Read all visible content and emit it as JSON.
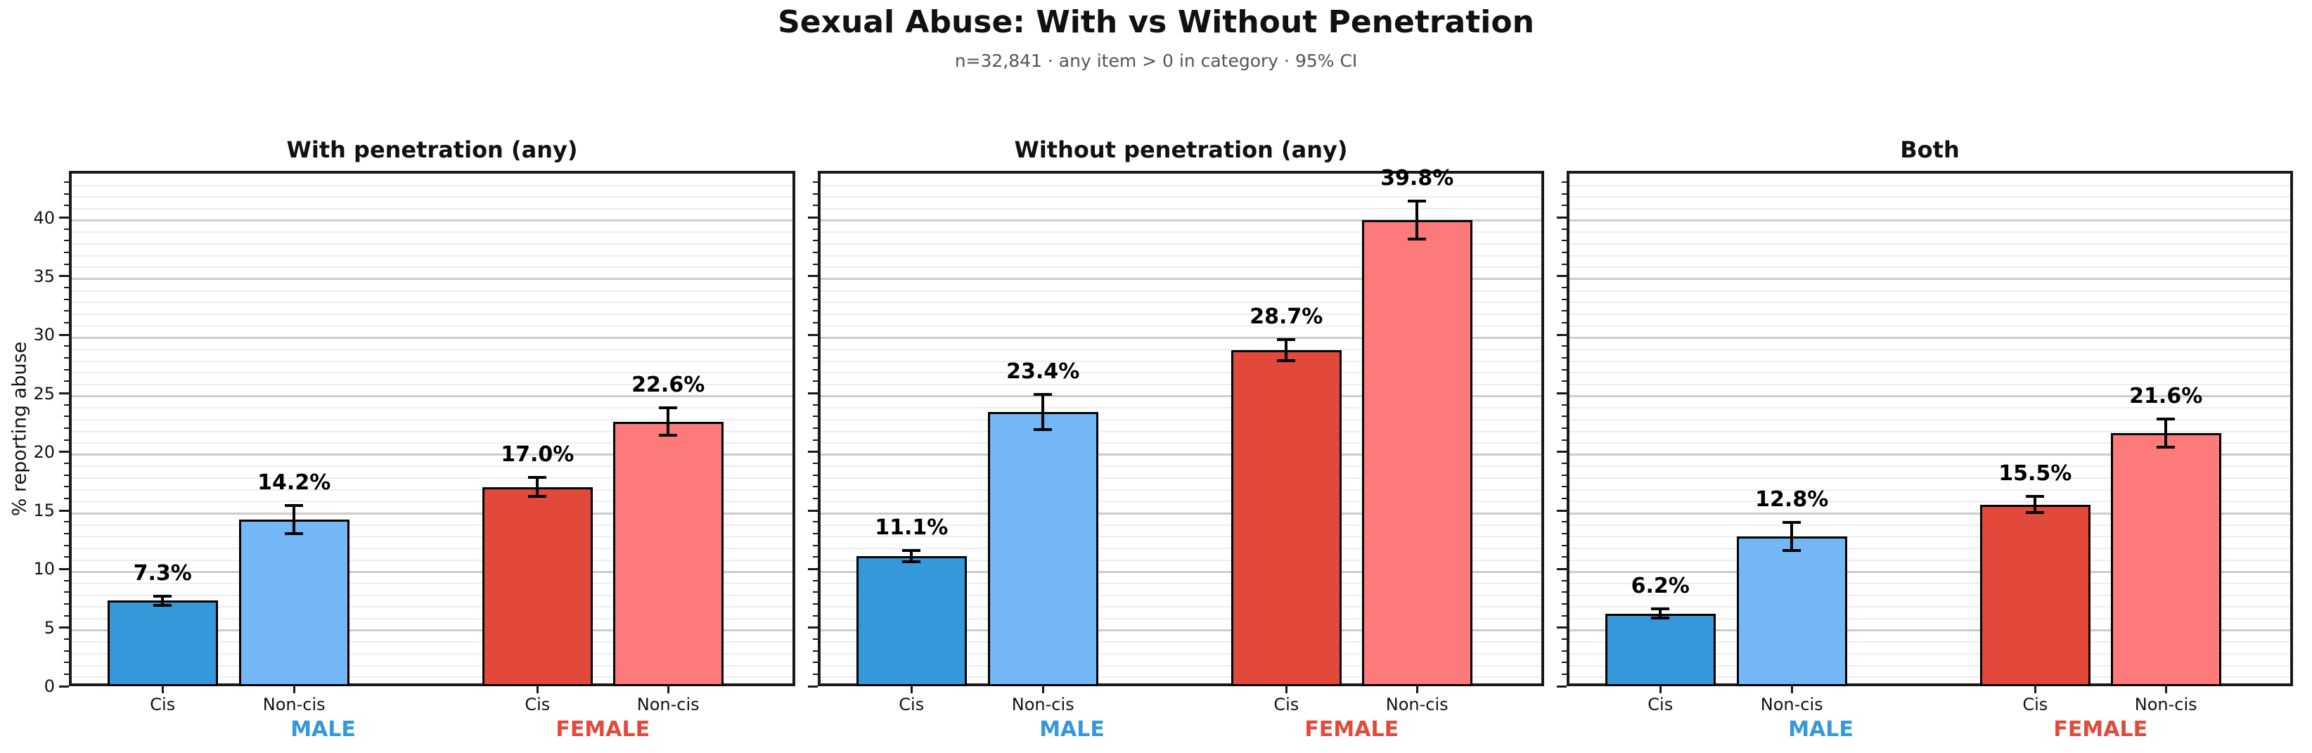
{
  "header": {
    "title": "Sexual Abuse: With vs Without Penetration",
    "subtitle": "n=32,841 · any item > 0 in category · 95% CI"
  },
  "axis": {
    "ylabel": "% reporting abuse",
    "ylim": [
      0,
      44
    ],
    "yticks": [
      0,
      5,
      10,
      15,
      20,
      25,
      30,
      35,
      40
    ],
    "minor_grid_step": 1,
    "major_grid_step": 5,
    "grid": "on"
  },
  "colors": {
    "bars": [
      "#3498db",
      "#74b7f6",
      "#e2493b",
      "#fc7a7a"
    ],
    "male_label": "#3498db",
    "female_label": "#e2493b",
    "subtitle_text": "#555555",
    "error_bar": "#000000"
  },
  "chart_data": [
    {
      "type": "bar",
      "title": "With penetration (any)",
      "categories": [
        "Cis",
        "Non-cis",
        "Cis",
        "Non-cis"
      ],
      "group_labels": [
        "MALE",
        "FEMALE"
      ],
      "values": [
        7.3,
        14.2,
        17.0,
        22.6
      ],
      "errors": [
        0.4,
        1.2,
        0.8,
        1.2
      ],
      "value_labels": [
        "7.3%",
        "14.2%",
        "17.0%",
        "22.6%"
      ],
      "ylabel": "% reporting abuse",
      "ylim": [
        0,
        44
      ]
    },
    {
      "type": "bar",
      "title": "Without penetration (any)",
      "categories": [
        "Cis",
        "Non-cis",
        "Cis",
        "Non-cis"
      ],
      "group_labels": [
        "MALE",
        "FEMALE"
      ],
      "values": [
        11.1,
        23.4,
        28.7,
        39.8
      ],
      "errors": [
        0.5,
        1.5,
        0.9,
        1.6
      ],
      "value_labels": [
        "11.1%",
        "23.4%",
        "28.7%",
        "39.8%"
      ],
      "ylabel": "% reporting abuse",
      "ylim": [
        0,
        44
      ]
    },
    {
      "type": "bar",
      "title": "Both",
      "categories": [
        "Cis",
        "Non-cis",
        "Cis",
        "Non-cis"
      ],
      "group_labels": [
        "MALE",
        "FEMALE"
      ],
      "values": [
        6.2,
        12.8,
        15.5,
        21.6
      ],
      "errors": [
        0.4,
        1.2,
        0.7,
        1.2
      ],
      "value_labels": [
        "6.2%",
        "12.8%",
        "15.5%",
        "21.6%"
      ],
      "ylabel": "% reporting abuse",
      "ylim": [
        0,
        44
      ]
    }
  ]
}
